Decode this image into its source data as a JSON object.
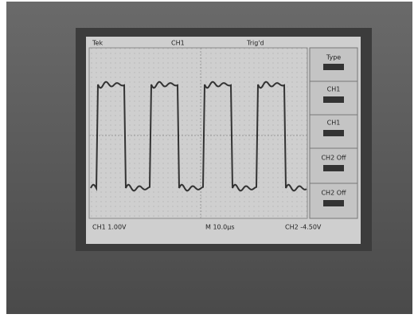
{
  "screen": {
    "status_bar": [
      "Tek",
      "CH1",
      "Trig'd"
    ],
    "menu": [
      "Type",
      "CH1",
      "CH1",
      "CH2 Off",
      "CH2 Off"
    ],
    "readouts": [
      "CH1 1.00V",
      "M 10.0µs",
      "CH2 -4.50V"
    ]
  }
}
